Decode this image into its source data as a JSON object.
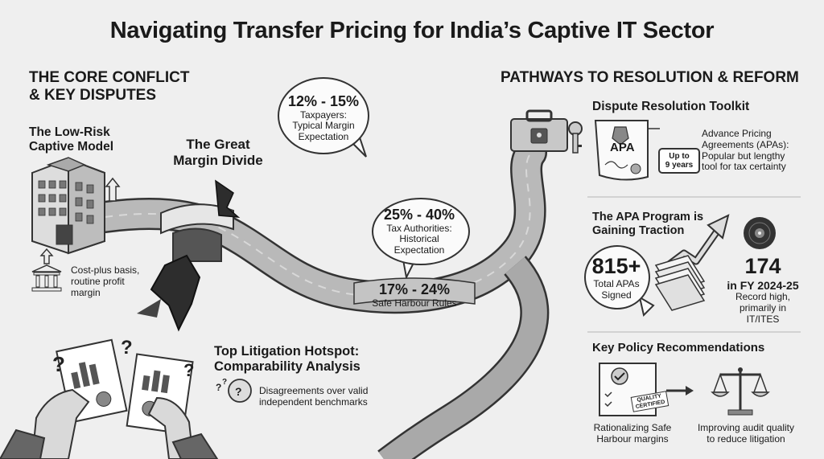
{
  "title": "Navigating Transfer Pricing for India’s Captive IT Sector",
  "left": {
    "heading_line1": "THE CORE CONFLICT",
    "heading_line2": "& KEY DISPUTES",
    "captive": {
      "heading_line1": "The Low-Risk",
      "heading_line2": "Captive Model",
      "desc_line1": "Cost-plus basis,",
      "desc_line2": "routine profit",
      "desc_line3": "margin"
    },
    "divide": {
      "line1": "The Great",
      "line2": "Margin Divide"
    },
    "taxpayers": {
      "range": "12% - 15%",
      "line1": "Taxpayers:",
      "line2": "Typical Margin",
      "line3": "Expectation"
    },
    "authorities": {
      "range": "25% - 40%",
      "line1": "Tax Authorities:",
      "line2": "Historical",
      "line3": "Expectation"
    },
    "safe_harbour": {
      "range": "17% - 24%",
      "label": "Safe Harbour Rules"
    },
    "litigation": {
      "heading_line1": "Top Litigation Hotspot:",
      "heading_line2": "Comparability Analysis",
      "desc_line1": "Disagreements over valid",
      "desc_line2": "independent benchmarks"
    }
  },
  "right": {
    "heading": "PATHWAYS TO RESOLUTION & REFORM",
    "toolkit": {
      "heading": "Dispute Resolution Toolkit",
      "doc_label": "APA",
      "badge_line1": "Up to",
      "badge_line2": "9 years",
      "desc_line1": "Advance Pricing",
      "desc_line2": "Agreements (APAs):",
      "desc_line3": "Popular but lengthy",
      "desc_line4": "tool for tax certainty"
    },
    "apa_program": {
      "heading_line1": "The APA Program is",
      "heading_line2": "Gaining Traction",
      "total_value": "815+",
      "total_line1": "Total APAs",
      "total_line2": "Signed",
      "fy_value": "174",
      "fy_label": "in FY 2024-25",
      "fy_line1": "Record high,",
      "fy_line2": "primarily in",
      "fy_line3": "IT/ITES"
    },
    "policy": {
      "heading": "Key Policy Recommendations",
      "stamp_line1": "QUALITY",
      "stamp_line2": "CERTIFIED",
      "rec1_line1": "Rationalizing Safe",
      "rec1_line2": "Harbour margins",
      "rec2_line1": "Improving audit quality",
      "rec2_line2": "to reduce litigation"
    }
  }
}
